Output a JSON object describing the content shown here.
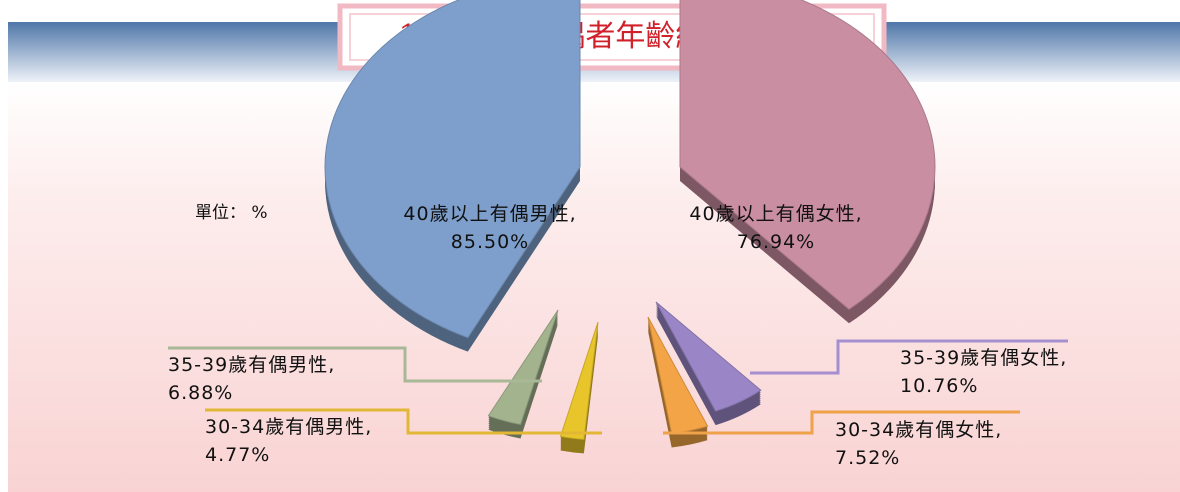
{
  "chart_data": {
    "type": "pie",
    "title": "106 年底有偶者年齡結構分占比",
    "unit_label": "單位： %",
    "series": [
      {
        "name": "有偶男性",
        "values": [
          85.5,
          6.88,
          4.77
        ],
        "value_labels": [
          "40歲以上有偶男性, 85.50%",
          "35-39歲有偶男性, 6.88%",
          "30-34歲有偶男性, 4.77%"
        ],
        "colors": [
          "#7e9fcb",
          "#a3b38e",
          "#e9c52c"
        ]
      },
      {
        "name": "有偶女性",
        "values": [
          76.94,
          10.76,
          7.52
        ],
        "value_labels": [
          "40歲以上有偶女性, 76.94%",
          "35-39歲有偶女性, 10.76%",
          "30-34歲有偶女性, 7.52%"
        ],
        "colors": [
          "#c98ea2",
          "#9a86c6",
          "#f3a446"
        ]
      }
    ]
  }
}
